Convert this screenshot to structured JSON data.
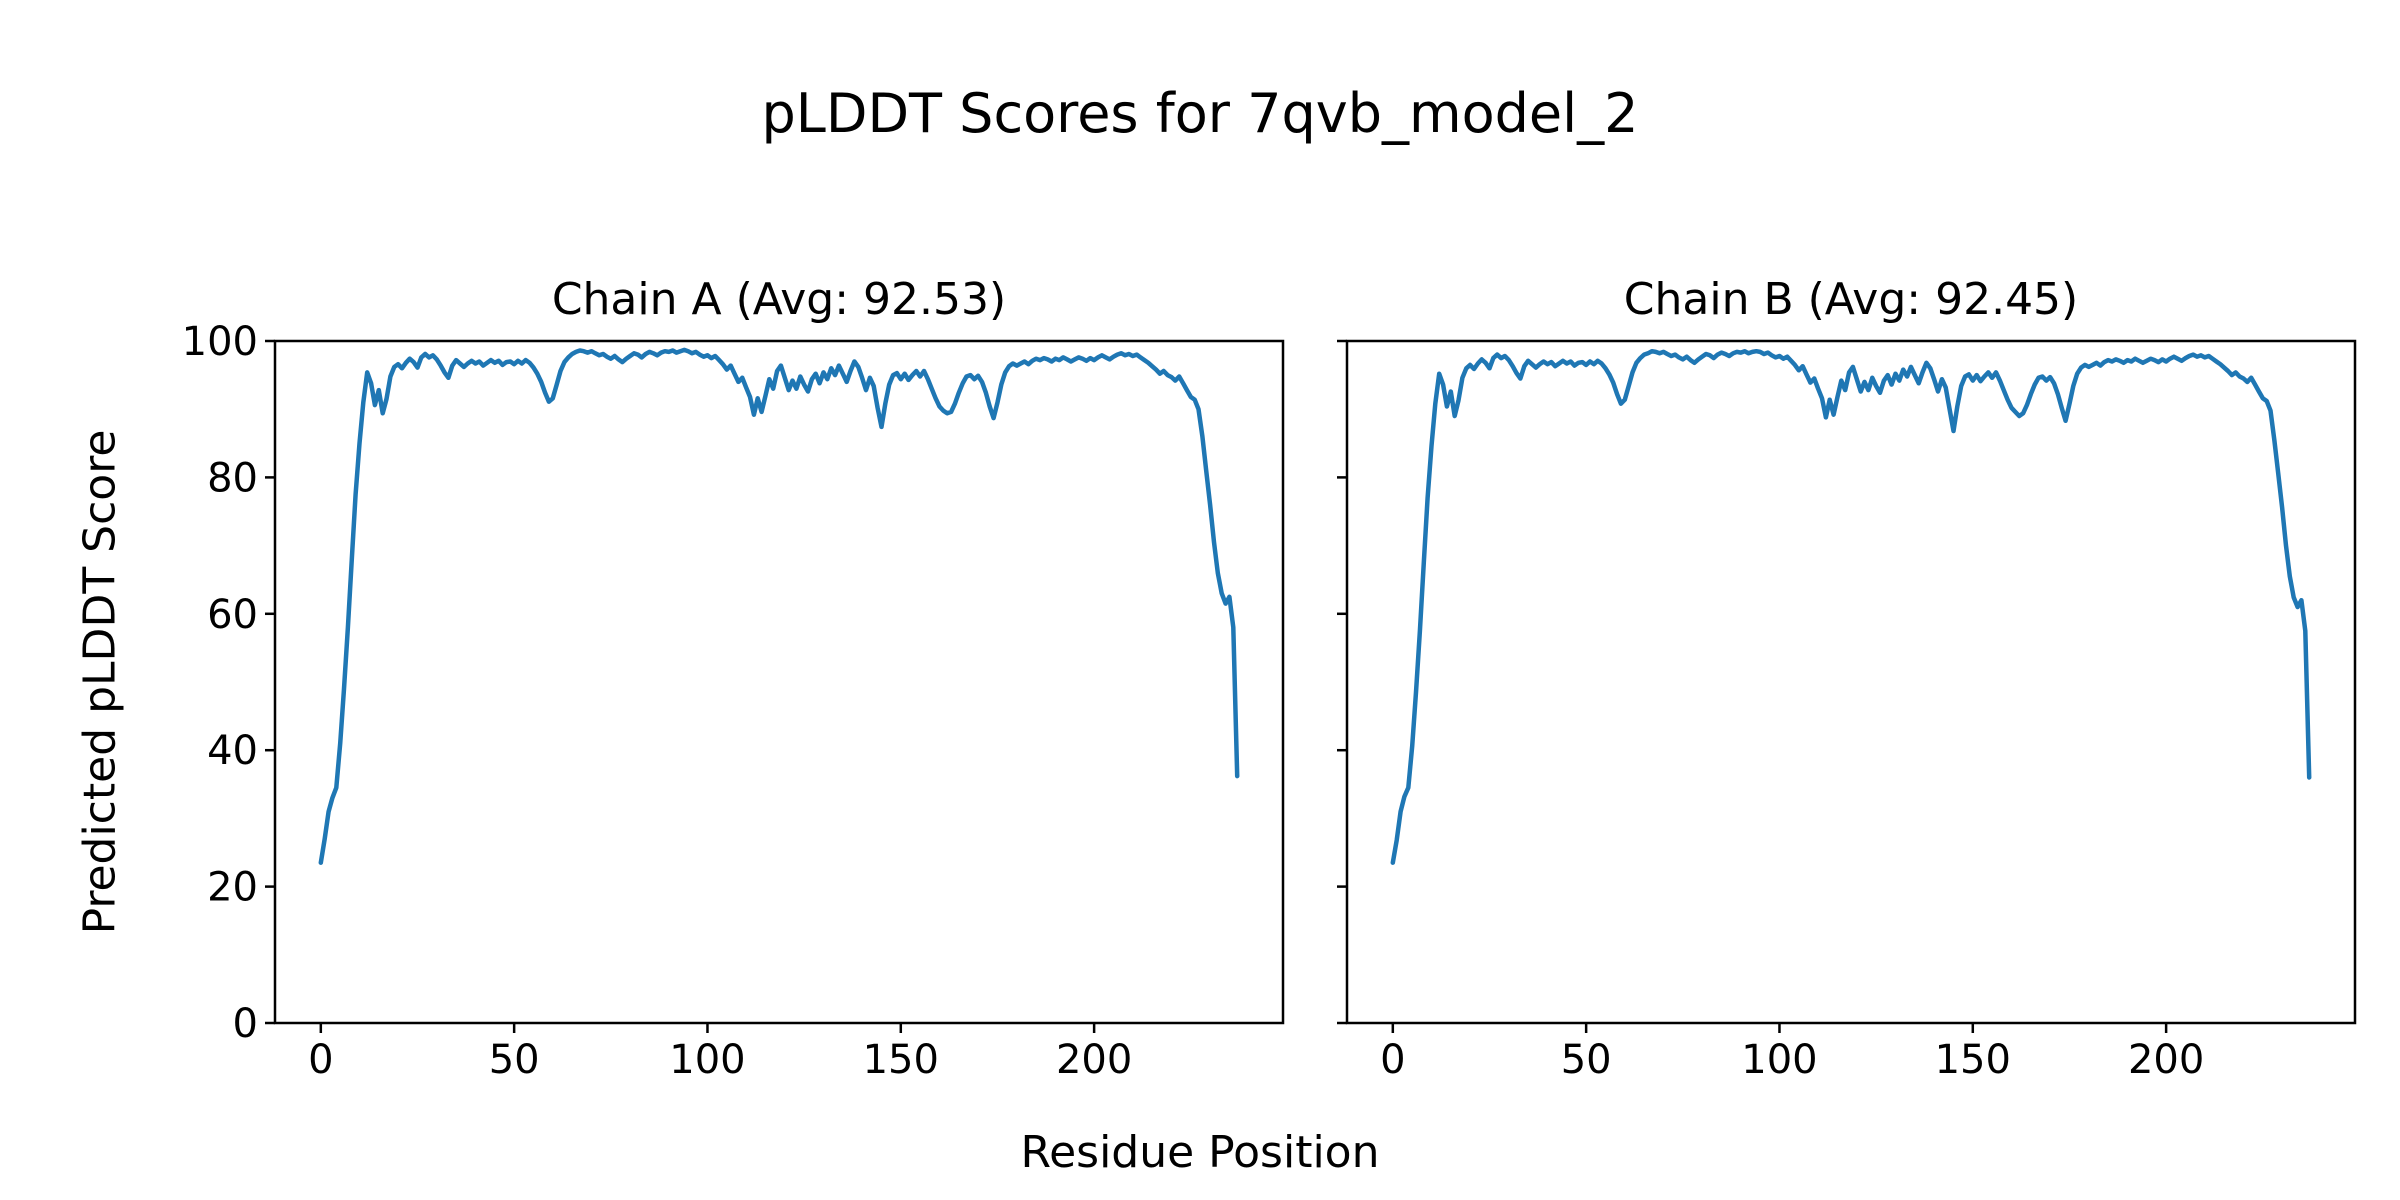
{
  "figure": {
    "suptitle": "pLDDT Scores for 7qvb_model_2",
    "xlabel": "Residue Position",
    "ylabel": "Predicted pLDDT Score",
    "background_color": "#ffffff",
    "axes_color": "#000000"
  },
  "chart_data": [
    {
      "type": "line",
      "title": "Chain A (Avg: 92.53)",
      "series_name": "Chain A pLDDT",
      "avg": 92.53,
      "color": "#1f77b4",
      "xlabel": "Residue Position",
      "ylabel": "Predicted pLDDT Score",
      "xlim": [
        -11.85,
        248.85
      ],
      "ylim": [
        0,
        100
      ],
      "xticks": [
        0,
        50,
        100,
        150,
        200
      ],
      "yticks": [
        0,
        20,
        40,
        60,
        80,
        100
      ],
      "show_ytick_labels": true,
      "grid": false,
      "legend": null,
      "x_start": 0,
      "x_step": 1,
      "values": [
        23.5,
        27.0,
        31.0,
        33.0,
        34.5,
        41.0,
        49.0,
        58.0,
        68.0,
        77.5,
        85.0,
        91.0,
        95.4,
        93.8,
        90.6,
        92.8,
        89.4,
        91.5,
        94.8,
        96.2,
        96.6,
        96.0,
        96.8,
        97.4,
        96.9,
        96.1,
        97.6,
        98.1,
        97.6,
        97.9,
        97.3,
        96.4,
        95.4,
        94.6,
        96.4,
        97.2,
        96.7,
        96.2,
        96.7,
        97.1,
        96.7,
        97.0,
        96.4,
        96.8,
        97.2,
        96.8,
        97.1,
        96.5,
        96.9,
        97.0,
        96.6,
        97.1,
        96.7,
        97.2,
        96.8,
        96.1,
        95.2,
        94.0,
        92.4,
        91.1,
        91.6,
        93.6,
        95.6,
        96.9,
        97.6,
        98.1,
        98.4,
        98.6,
        98.5,
        98.3,
        98.5,
        98.2,
        97.9,
        98.1,
        97.7,
        97.4,
        97.8,
        97.3,
        96.9,
        97.4,
        97.8,
        98.2,
        98.0,
        97.6,
        98.1,
        98.4,
        98.2,
        97.9,
        98.3,
        98.5,
        98.4,
        98.6,
        98.3,
        98.5,
        98.7,
        98.5,
        98.2,
        98.4,
        98.0,
        97.7,
        97.9,
        97.5,
        97.8,
        97.2,
        96.6,
        95.8,
        96.4,
        95.2,
        94.0,
        94.6,
        93.2,
        91.8,
        89.2,
        91.6,
        89.6,
        92.0,
        94.4,
        93.0,
        95.6,
        96.4,
        94.6,
        92.8,
        94.2,
        93.0,
        94.8,
        93.6,
        92.6,
        94.4,
        95.2,
        93.8,
        95.4,
        94.4,
        96.0,
        95.0,
        96.4,
        95.2,
        94.0,
        95.6,
        97.0,
        96.2,
        94.6,
        92.8,
        94.6,
        93.4,
        90.2,
        87.4,
        90.8,
        93.6,
        95.0,
        95.3,
        94.4,
        95.2,
        94.3,
        95.0,
        95.6,
        94.8,
        95.6,
        94.4,
        93.0,
        91.6,
        90.4,
        89.8,
        89.4,
        89.6,
        90.8,
        92.4,
        93.8,
        94.8,
        95.0,
        94.4,
        94.9,
        94.0,
        92.4,
        90.4,
        88.7,
        91.0,
        93.6,
        95.4,
        96.3,
        96.7,
        96.4,
        96.7,
        97.0,
        96.6,
        97.1,
        97.4,
        97.2,
        97.5,
        97.3,
        97.0,
        97.4,
        97.2,
        97.6,
        97.3,
        97.0,
        97.3,
        97.6,
        97.4,
        97.1,
        97.5,
        97.2,
        97.6,
        97.9,
        97.6,
        97.3,
        97.7,
        98.0,
        98.2,
        97.9,
        98.1,
        97.8,
        98.0,
        97.6,
        97.2,
        96.8,
        96.3,
        95.8,
        95.2,
        95.6,
        95.0,
        94.7,
        94.2,
        94.8,
        93.8,
        92.8,
        91.8,
        91.4,
        90.0,
        86.0,
        81.0,
        76.0,
        70.5,
        66.0,
        63.0,
        61.5,
        62.5,
        58.0,
        36.2
      ]
    },
    {
      "type": "line",
      "title": "Chain B (Avg: 92.45)",
      "series_name": "Chain B pLDDT",
      "avg": 92.45,
      "color": "#1f77b4",
      "xlabel": "Residue Position",
      "ylabel": "Predicted pLDDT Score",
      "xlim": [
        -11.85,
        248.85
      ],
      "ylim": [
        0,
        100
      ],
      "xticks": [
        0,
        50,
        100,
        150,
        200
      ],
      "yticks": [
        0,
        20,
        40,
        60,
        80,
        100
      ],
      "show_ytick_labels": false,
      "grid": false,
      "legend": null,
      "x_start": 0,
      "x_step": 1,
      "values": [
        23.5,
        26.8,
        31.0,
        33.2,
        34.5,
        40.6,
        48.5,
        57.5,
        67.5,
        77.0,
        84.6,
        90.8,
        95.2,
        93.6,
        90.4,
        92.6,
        89.0,
        91.3,
        94.6,
        96.0,
        96.5,
        95.9,
        96.7,
        97.3,
        96.8,
        96.0,
        97.5,
        98.0,
        97.5,
        97.8,
        97.2,
        96.3,
        95.3,
        94.5,
        96.3,
        97.1,
        96.6,
        96.1,
        96.6,
        97.0,
        96.6,
        96.9,
        96.3,
        96.7,
        97.1,
        96.7,
        97.0,
        96.4,
        96.8,
        96.9,
        96.5,
        97.0,
        96.6,
        97.1,
        96.7,
        96.0,
        95.1,
        93.9,
        92.2,
        90.8,
        91.4,
        93.4,
        95.4,
        96.8,
        97.5,
        98.0,
        98.2,
        98.5,
        98.4,
        98.2,
        98.4,
        98.1,
        97.8,
        98.0,
        97.6,
        97.3,
        97.7,
        97.2,
        96.8,
        97.3,
        97.7,
        98.1,
        97.9,
        97.5,
        98.0,
        98.3,
        98.1,
        97.8,
        98.2,
        98.4,
        98.3,
        98.5,
        98.2,
        98.4,
        98.5,
        98.4,
        98.1,
        98.3,
        97.9,
        97.6,
        97.8,
        97.4,
        97.7,
        97.1,
        96.5,
        95.7,
        96.3,
        95.1,
        93.9,
        94.5,
        93.0,
        91.6,
        88.8,
        91.4,
        89.2,
        91.8,
        94.2,
        92.8,
        95.4,
        96.2,
        94.4,
        92.6,
        94.0,
        92.8,
        94.6,
        93.4,
        92.4,
        94.2,
        95.0,
        93.6,
        95.2,
        94.2,
        95.8,
        94.8,
        96.2,
        95.0,
        93.8,
        95.4,
        96.8,
        96.0,
        94.4,
        92.6,
        94.4,
        93.2,
        90.0,
        86.8,
        90.4,
        93.4,
        94.8,
        95.1,
        94.2,
        95.0,
        94.1,
        94.8,
        95.4,
        94.6,
        95.4,
        94.2,
        92.8,
        91.4,
        90.2,
        89.6,
        89.0,
        89.4,
        90.6,
        92.2,
        93.6,
        94.6,
        94.8,
        94.2,
        94.7,
        93.8,
        92.2,
        90.2,
        88.3,
        90.8,
        93.4,
        95.2,
        96.1,
        96.5,
        96.2,
        96.5,
        96.8,
        96.4,
        96.9,
        97.2,
        97.0,
        97.3,
        97.1,
        96.8,
        97.2,
        97.0,
        97.4,
        97.1,
        96.8,
        97.1,
        97.4,
        97.2,
        96.9,
        97.3,
        97.0,
        97.4,
        97.7,
        97.4,
        97.1,
        97.5,
        97.8,
        98.0,
        97.7,
        97.9,
        97.6,
        97.8,
        97.4,
        97.0,
        96.6,
        96.1,
        95.6,
        95.0,
        95.4,
        94.8,
        94.5,
        94.0,
        94.6,
        93.6,
        92.6,
        91.6,
        91.2,
        89.8,
        85.4,
        80.6,
        75.6,
        70.0,
        65.5,
        62.4,
        61.0,
        62.0,
        57.5,
        36.0
      ]
    }
  ]
}
